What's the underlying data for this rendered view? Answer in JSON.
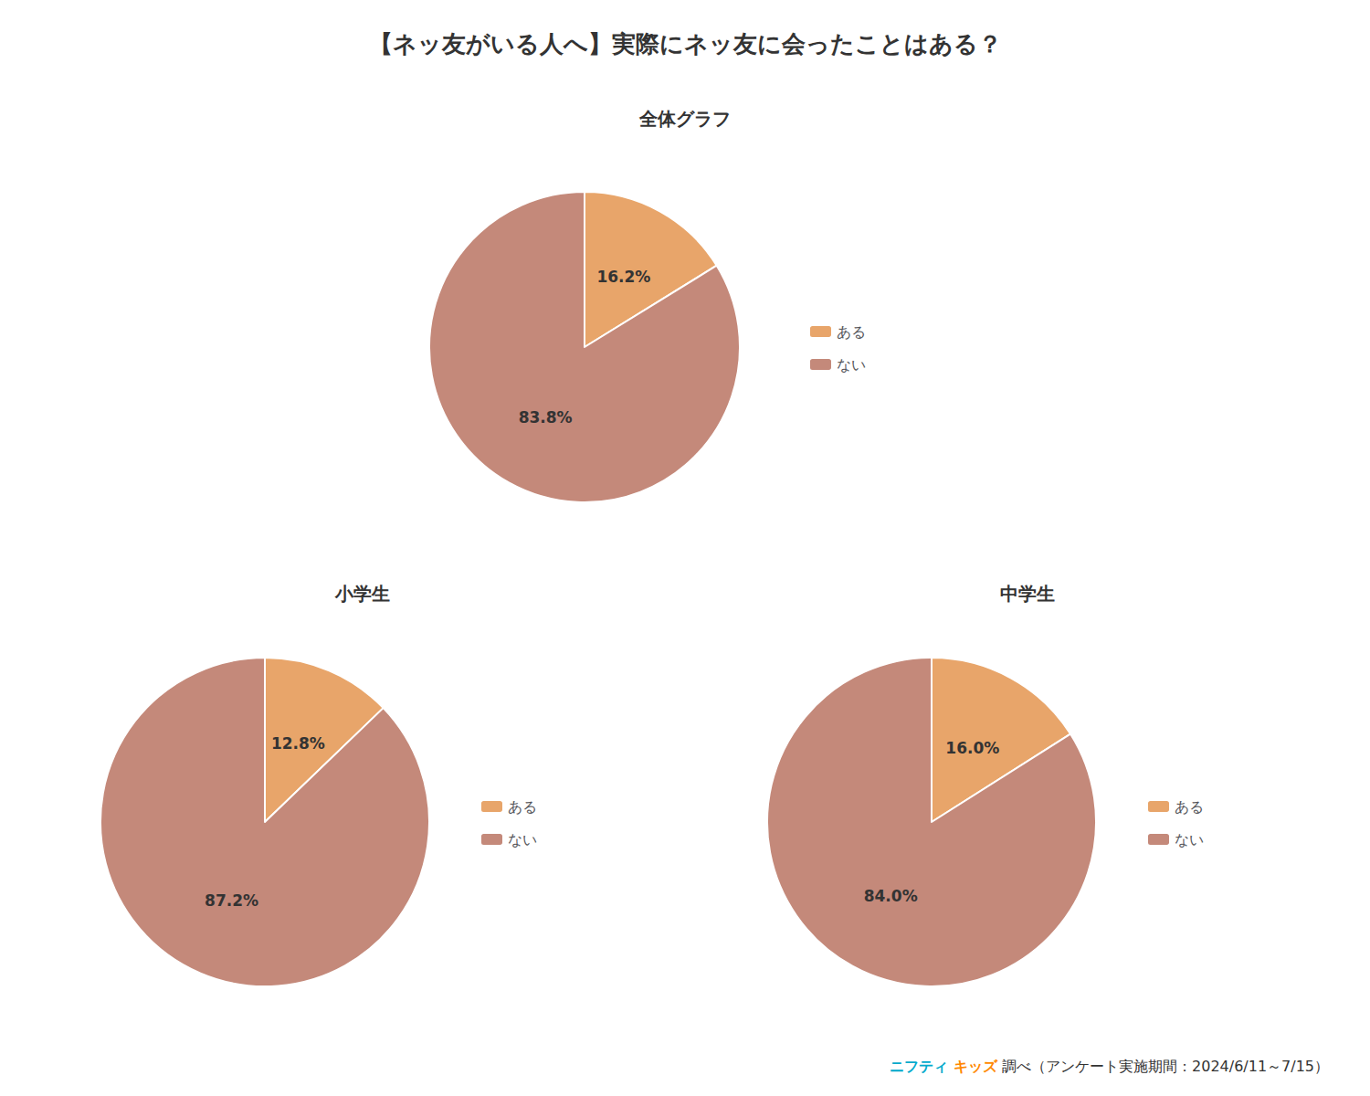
{
  "chart_data": [
    {
      "type": "pie",
      "title": "【ネッ友がいる人へ】実際にネッ友に会ったことはある？",
      "subtitle": "全体グラフ",
      "categories": [
        "ある",
        "ない"
      ],
      "values": [
        16.2,
        83.8
      ],
      "value_labels": [
        "16.2%",
        "83.8%"
      ],
      "colors": [
        "#E8A56A",
        "#C4897A"
      ],
      "data_labels": true,
      "legend": "right",
      "annotations": [
        {
          "text": "ニフティ ",
          "color": "#00AACC"
        },
        {
          "text": "キッズ",
          "color": "#FF8800"
        },
        {
          "text": " 調べ（アンケート実施期間：2024/6/11～7/15）",
          "color": "#333333"
        }
      ]
    },
    {
      "type": "pie",
      "title": "小学生",
      "categories": [
        "ある",
        "ない"
      ],
      "values": [
        12.8,
        87.2
      ],
      "value_labels": [
        "12.8%",
        "87.2%"
      ],
      "colors": [
        "#E8A56A",
        "#C4897A"
      ],
      "data_labels": true,
      "legend": "right"
    },
    {
      "type": "pie",
      "title": "中学生",
      "categories": [
        "ある",
        "ない"
      ],
      "values": [
        16.0,
        84.0
      ],
      "value_labels": [
        "16.0%",
        "84.0%"
      ],
      "colors": [
        "#E8A56A",
        "#C4897A"
      ],
      "data_labels": true,
      "legend": "right"
    }
  ]
}
